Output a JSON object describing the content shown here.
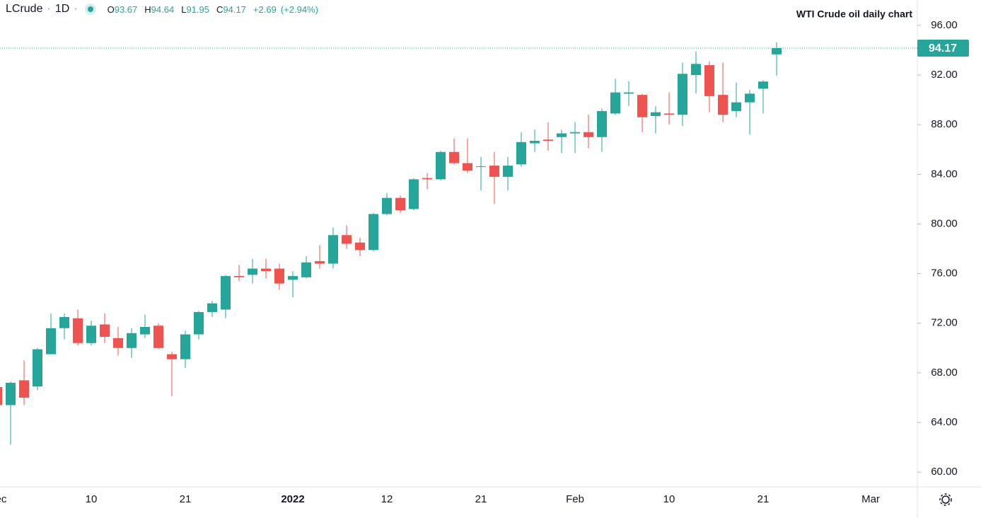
{
  "header": {
    "symbol": "LCrude",
    "interval": "1D",
    "ohlc_labels": [
      "O",
      "H",
      "L",
      "C"
    ],
    "change": "+2.69",
    "change_pct": "(+2.94%)"
  },
  "chart_data": {
    "type": "candlestick",
    "title": "WTI Crude oil daily chart",
    "categories": [
      "Dec",
      null,
      null,
      null,
      null,
      null,
      null,
      "10",
      null,
      null,
      null,
      null,
      null,
      null,
      "21",
      null,
      null,
      null,
      null,
      null,
      null,
      null,
      "2022",
      null,
      null,
      null,
      null,
      null,
      null,
      "12",
      null,
      null,
      null,
      null,
      null,
      null,
      "21",
      null,
      null,
      null,
      null,
      null,
      null,
      "Feb",
      null,
      null,
      null,
      null,
      null,
      null,
      "10",
      null,
      null,
      null,
      null,
      null,
      null,
      "21",
      null,
      null,
      null,
      null,
      null,
      null,
      null,
      "Mar"
    ],
    "open": [
      66.85,
      65.4,
      67.4,
      66.9,
      69.5,
      71.6,
      72.4,
      70.4,
      71.9,
      70.8,
      70.0,
      71.1,
      71.8,
      69.5,
      69.1,
      71.1,
      72.9,
      73.1,
      75.8,
      75.9,
      76.4,
      76.4,
      75.5,
      75.7,
      77.0,
      76.8,
      79.1,
      78.5,
      77.9,
      80.8,
      82.1,
      81.2,
      83.7,
      83.6,
      85.8,
      84.9,
      84.6,
      84.7,
      83.8,
      84.8,
      86.5,
      86.8,
      87.0,
      87.3,
      87.4,
      87.0,
      88.9,
      90.5,
      90.4,
      88.7,
      88.9,
      88.8,
      92.0,
      92.8,
      90.4,
      89.1,
      89.8,
      90.9,
      93.67,
      null,
      null,
      null,
      null,
      null,
      null,
      null
    ],
    "high": [
      67.0,
      67.3,
      69.0,
      70.0,
      72.8,
      72.8,
      73.1,
      72.2,
      72.8,
      71.7,
      71.6,
      72.7,
      72.0,
      69.7,
      71.4,
      73.0,
      73.8,
      75.9,
      76.7,
      77.2,
      77.2,
      76.8,
      76.2,
      77.4,
      78.3,
      79.7,
      79.9,
      78.9,
      80.9,
      82.5,
      82.3,
      83.7,
      84.1,
      85.9,
      86.9,
      86.9,
      85.4,
      85.8,
      85.4,
      87.4,
      87.6,
      88.2,
      87.6,
      88.2,
      88.8,
      89.3,
      91.7,
      91.5,
      90.5,
      89.5,
      90.6,
      93.0,
      93.9,
      93.1,
      93.0,
      91.4,
      90.8,
      91.6,
      94.64,
      null,
      null,
      null,
      null,
      null,
      null,
      null
    ],
    "low": [
      65.2,
      62.2,
      65.4,
      66.6,
      69.5,
      70.7,
      70.2,
      70.2,
      70.4,
      69.4,
      69.2,
      70.8,
      69.9,
      66.1,
      68.4,
      70.7,
      72.5,
      72.4,
      75.4,
      75.2,
      75.6,
      74.7,
      74.1,
      75.6,
      76.4,
      76.4,
      78.0,
      77.4,
      77.8,
      80.7,
      80.9,
      81.1,
      82.8,
      83.5,
      84.8,
      84.1,
      82.7,
      81.6,
      82.7,
      84.6,
      85.8,
      85.9,
      85.7,
      85.7,
      86.1,
      85.8,
      88.8,
      89.5,
      87.4,
      87.3,
      88.0,
      87.9,
      90.5,
      89.0,
      88.2,
      88.6,
      87.2,
      88.9,
      91.95,
      null,
      null,
      null,
      null,
      null,
      null,
      null
    ],
    "close": [
      65.4,
      67.2,
      66.0,
      69.9,
      71.6,
      72.5,
      70.4,
      71.8,
      70.9,
      70.0,
      71.2,
      71.7,
      70.0,
      69.1,
      71.1,
      72.9,
      73.6,
      75.8,
      75.7,
      76.4,
      76.2,
      75.2,
      75.8,
      76.9,
      76.8,
      79.1,
      78.4,
      77.9,
      80.8,
      82.1,
      81.1,
      83.6,
      83.6,
      85.8,
      84.9,
      84.3,
      84.65,
      83.8,
      84.7,
      86.6,
      86.7,
      86.7,
      87.3,
      87.4,
      87.0,
      89.1,
      90.6,
      90.6,
      88.6,
      89.0,
      88.8,
      92.1,
      92.9,
      90.3,
      88.8,
      89.8,
      90.5,
      91.48,
      94.17,
      null,
      null,
      null,
      null,
      null,
      null,
      null
    ],
    "up_color": "#26a69a",
    "down_color": "#ef5350",
    "ylim": [
      58.81,
      98.05
    ],
    "yticks": [
      {
        "value": 60,
        "label": "60.00"
      },
      {
        "value": 64,
        "label": "64.00"
      },
      {
        "value": 68,
        "label": "68.00"
      },
      {
        "value": 72,
        "label": "72.00"
      },
      {
        "value": 76,
        "label": "76.00"
      },
      {
        "value": 80,
        "label": "80.00"
      },
      {
        "value": 84,
        "label": "84.00"
      },
      {
        "value": 88,
        "label": "88.00"
      },
      {
        "value": 92,
        "label": "92.00"
      },
      {
        "value": 96,
        "label": "96.00"
      }
    ],
    "grid": false,
    "last_price_line": true
  }
}
